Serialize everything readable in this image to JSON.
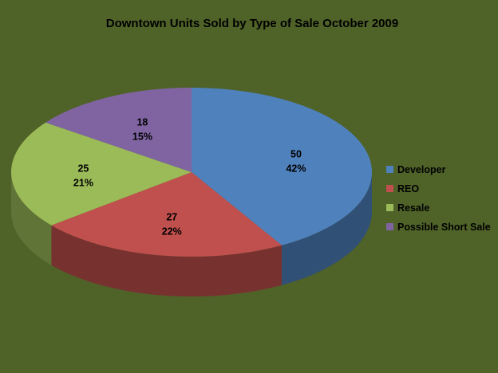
{
  "colors": {
    "background": "#4f6228",
    "Developer": "#4f81bd",
    "REO": "#c0504d",
    "Resale": "#9bbb59",
    "Possible Short Sale": "#8064a2"
  },
  "chart_data": {
    "type": "pie",
    "title": "Downtown Units Sold by Type of Sale October 2009",
    "style": "3d",
    "legend_position": "right",
    "series": [
      {
        "name": "Developer",
        "value": 50,
        "percent": "42%"
      },
      {
        "name": "REO",
        "value": 27,
        "percent": "22%"
      },
      {
        "name": "Resale",
        "value": 25,
        "percent": "21%"
      },
      {
        "name": "Possible Short Sale",
        "value": 18,
        "percent": "15%"
      }
    ]
  }
}
